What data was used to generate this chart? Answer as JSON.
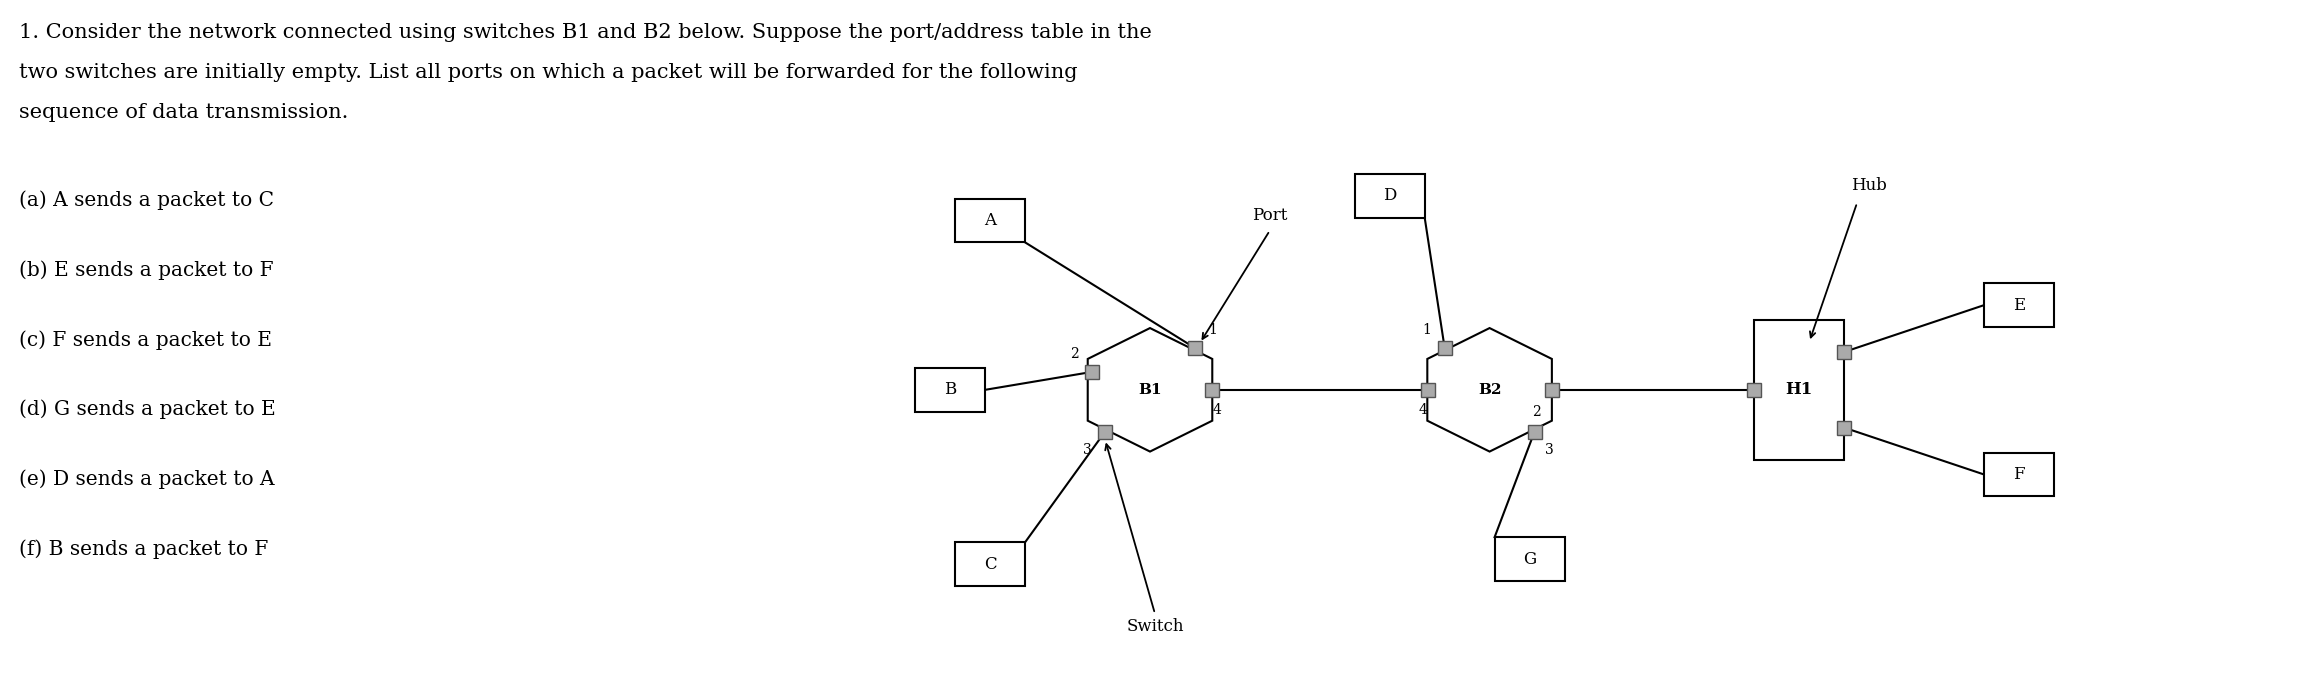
{
  "title_line1": "1. Consider the network connected using switches B1 and B2 below. Suppose the port/address table in the",
  "title_line2": "two switches are initially empty. List all ports on which a packet will be forwarded for the following",
  "title_line3": "sequence of data transmission.",
  "questions": [
    "(a) A sends a packet to C",
    "(b) E sends a packet to F",
    "(c) F sends a packet to E",
    "(d) G sends a packet to E",
    "(e) D sends a packet to A",
    "(f) B sends a packet to F"
  ],
  "bg_color": "#ffffff",
  "text_color": "#000000",
  "switch_fill": "#ffffff",
  "switch_edge": "#000000",
  "port_fill": "#aaaaaa",
  "port_edge": "#555555",
  "box_fill": "#ffffff",
  "box_edge": "#000000",
  "line_color": "#000000",
  "title_fontsize": 15,
  "q_fontsize": 14.5,
  "label_fontsize": 11,
  "port_num_fontsize": 10,
  "annotation_fontsize": 12
}
